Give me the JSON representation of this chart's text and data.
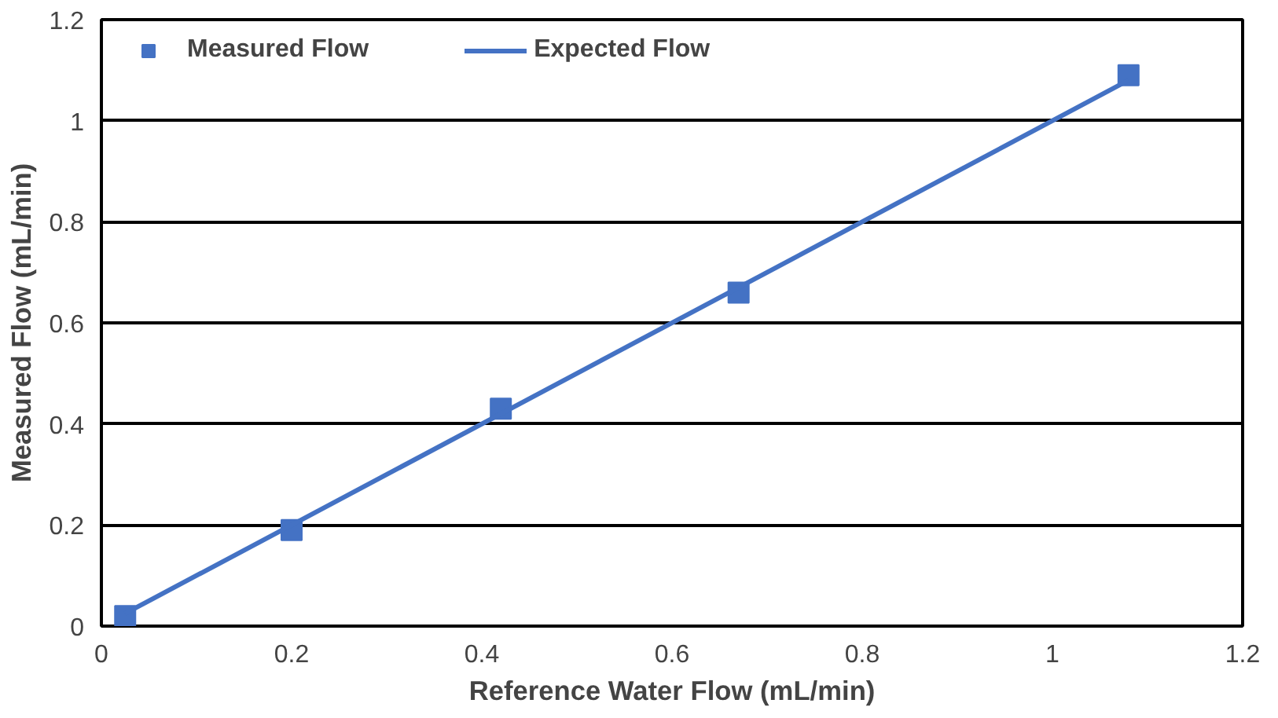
{
  "chart_data": {
    "type": "scatter",
    "xlabel": "Reference Water Flow (mL/min)",
    "ylabel": "Measured Flow (mL/min)",
    "xlim": [
      0,
      1.2
    ],
    "ylim": [
      0,
      1.2
    ],
    "xticks": [
      0,
      0.2,
      0.4,
      0.6,
      0.8,
      1,
      1.2
    ],
    "yticks": [
      0,
      0.2,
      0.4,
      0.6,
      0.8,
      1,
      1.2
    ],
    "grid": "y",
    "legend": "top left",
    "marker": "square",
    "series": [
      {
        "name": "Measured Flow",
        "color": "#4472c4",
        "x": [
          0.025,
          0.2,
          0.42,
          0.67,
          1.08
        ],
        "values": [
          0.02,
          0.19,
          0.43,
          0.66,
          1.09
        ]
      },
      {
        "name": "Expected Flow",
        "color": "#4472c4",
        "type": "line",
        "marker": "none",
        "line_style": "solid",
        "x": [
          0.025,
          1.08
        ],
        "values": [
          0.025,
          1.08
        ]
      }
    ]
  }
}
